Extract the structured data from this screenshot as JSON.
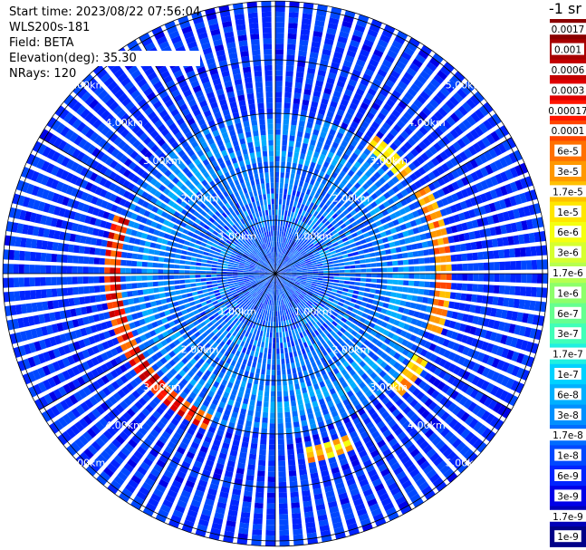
{
  "info": {
    "start_time": "Start time: 2023/08/22 07:56:04",
    "device": "WLS200s-181",
    "field": "Field: BETA",
    "elevation": "Elevation(deg): 35.30",
    "nrays": "NRays: 120"
  },
  "colorbar": {
    "unit": "-1 sr",
    "labels": [
      "0.0017",
      "0.001",
      "0.0006",
      "0.0003",
      "0.00017",
      "0.0001",
      "6e-5",
      "3e-5",
      "1.7e-5",
      "1e-5",
      "6e-6",
      "3e-6",
      "1.7e-6",
      "1e-6",
      "6e-7",
      "3e-7",
      "1.7e-7",
      "1e-7",
      "6e-8",
      "3e-8",
      "1.7e-8",
      "1e-8",
      "6e-9",
      "3e-9",
      "1.7e-9",
      "1e-9"
    ],
    "colors": [
      "#8b0000",
      "#a80000",
      "#c40000",
      "#e00000",
      "#ff1500",
      "#ff4500",
      "#ff7000",
      "#ff9800",
      "#ffc000",
      "#ffe600",
      "#f5ff10",
      "#d6ff30",
      "#b6ff50",
      "#8dff6a",
      "#66ff90",
      "#40ffb8",
      "#20f0e0",
      "#00d2ff",
      "#00b0ff",
      "#0090ff",
      "#006cff",
      "#0048ff",
      "#0024ff",
      "#0000e8",
      "#0000b8",
      "#000088"
    ]
  },
  "chart_data": {
    "type": "heatmap",
    "projection": "polar PPI",
    "field": "BETA",
    "elevation_deg": 35.3,
    "n_rays": 120,
    "ring_labels": [
      "1.00km",
      "2.00km",
      "3.00km",
      "4.00km",
      "5.00km"
    ],
    "ring_km": [
      1,
      2,
      3,
      4,
      5
    ],
    "max_range_km": 5.1,
    "spoke_angles_deg": [
      0,
      30,
      60,
      90,
      120,
      150,
      180,
      210,
      240,
      270,
      300,
      330
    ],
    "base_level_index": 21,
    "outer_level_index": 22,
    "features": [
      {
        "desc": "arc_west",
        "az_from": 205,
        "az_to": 290,
        "range_km": 3.0,
        "level": [
          2,
          6
        ]
      },
      {
        "desc": "arc_east",
        "az_from": 60,
        "az_to": 110,
        "range_km": 3.1,
        "level": [
          5,
          8
        ]
      },
      {
        "desc": "arc_northeast",
        "az_from": 35,
        "az_to": 55,
        "range_km": 3.0,
        "level": [
          7,
          10
        ]
      },
      {
        "desc": "arc_south",
        "az_from": 155,
        "az_to": 170,
        "range_km": 3.4,
        "level": [
          5,
          10
        ]
      },
      {
        "desc": "arc_southeast",
        "az_from": 120,
        "az_to": 135,
        "range_km": 3.1,
        "level": [
          6,
          10
        ]
      }
    ]
  }
}
